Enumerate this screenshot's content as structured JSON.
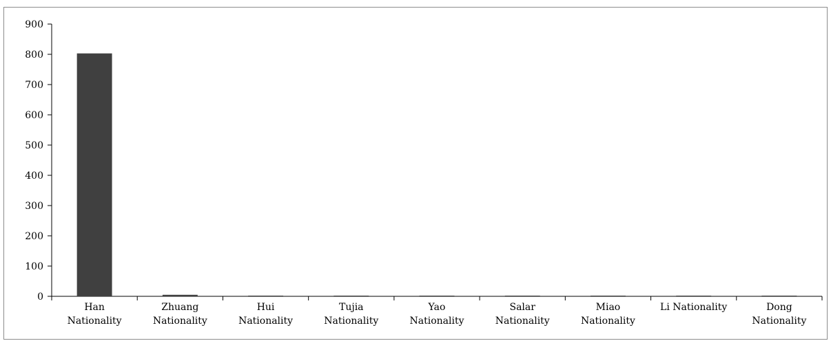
{
  "chart_data": {
    "type": "bar",
    "categories": [
      [
        "Han",
        "Nationality"
      ],
      [
        "Zhuang",
        "Nationality"
      ],
      [
        "Hui",
        "Nationality"
      ],
      [
        "Tujia",
        "Nationality"
      ],
      [
        "Yao",
        "Nationality"
      ],
      [
        "Salar",
        "Nationality"
      ],
      [
        "Miao",
        "Nationality"
      ],
      [
        "Li Nationality"
      ],
      [
        "Dong",
        "Nationality"
      ]
    ],
    "values": [
      803,
      5,
      2,
      2,
      2,
      1,
      1,
      1,
      1
    ],
    "title": "",
    "xlabel": "",
    "ylabel": "",
    "ylim": [
      0,
      900
    ],
    "yticks": [
      0,
      100,
      200,
      300,
      400,
      500,
      600,
      700,
      800,
      900
    ],
    "grid": false,
    "legend": "none",
    "bar_color": "#404040",
    "axis_color": "#000000"
  }
}
